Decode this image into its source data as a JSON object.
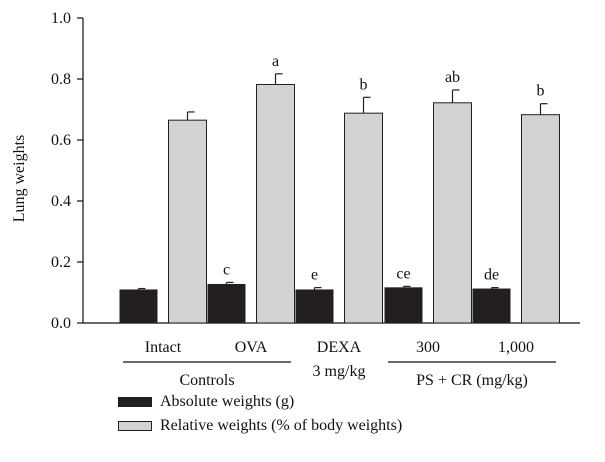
{
  "chart_data": {
    "type": "bar",
    "ylabel": "Lung weights",
    "ylim": [
      0,
      1.0
    ],
    "yticks": [
      "0.0",
      "0.2",
      "0.4",
      "0.6",
      "0.8",
      "1.0"
    ],
    "categories": [
      "Intact",
      "OVA",
      "DEXA",
      "300",
      "1,000"
    ],
    "category_sublabels": [
      "",
      "",
      "3 mg/kg",
      "",
      ""
    ],
    "groups": [
      {
        "label": "Controls",
        "categories": [
          "Intact",
          "OVA"
        ]
      },
      {
        "label": "PS + CR (mg/kg)",
        "categories": [
          "300",
          "1,000"
        ]
      }
    ],
    "series": [
      {
        "name": "Absolute weights (g)",
        "color": "#231f20",
        "values": [
          0.11,
          0.128,
          0.11,
          0.117,
          0.113
        ],
        "errors": [
          0.003,
          0.005,
          0.006,
          0.003,
          0.003
        ],
        "annotations": [
          "",
          "c",
          "e",
          "ce",
          "de"
        ]
      },
      {
        "name": "Relative weights (% of body weights)",
        "color": "#d1d3d4",
        "values": [
          0.665,
          0.782,
          0.688,
          0.722,
          0.683
        ],
        "errors": [
          0.027,
          0.035,
          0.052,
          0.042,
          0.036
        ],
        "annotations": [
          "",
          "a",
          "b",
          "ab",
          "b"
        ]
      }
    ],
    "legend_position": "bottom-left",
    "grid": false
  },
  "legend": {
    "absolute_label": "Absolute weights (g)",
    "relative_label": "Relative weights (% of body weights)"
  }
}
